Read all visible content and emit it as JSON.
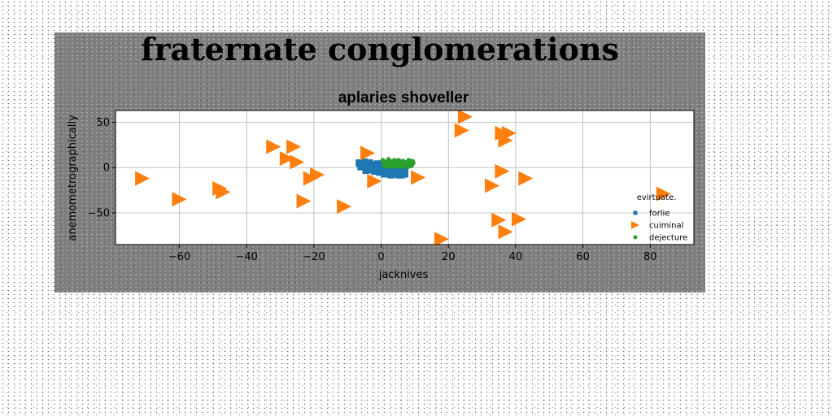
{
  "chart_data": {
    "type": "scatter",
    "title": "aplaries shoveller",
    "suptitle": "fraternate conglomerations",
    "xlabel": "jacknives",
    "ylabel": "anemometrographically",
    "xlim": [
      -79,
      93
    ],
    "ylim": [
      -85,
      63
    ],
    "xticks": [
      -60,
      -40,
      -20,
      0,
      20,
      40,
      60,
      80
    ],
    "yticks": [
      -50,
      0,
      50
    ],
    "grid": true,
    "legend": {
      "title": "evirtuate.",
      "placement": "lower-right",
      "entries": [
        "forlie",
        "cuiminal",
        "dejecture"
      ]
    },
    "series": [
      {
        "name": "forlie",
        "marker": "square",
        "color": "#1f77b4",
        "points": [
          [
            -6.5,
            5
          ],
          [
            -5.5,
            2
          ],
          [
            -4.5,
            -1
          ],
          [
            -4,
            4
          ],
          [
            -3,
            1
          ],
          [
            -2.5,
            -2
          ],
          [
            -2,
            3
          ],
          [
            -1,
            0
          ],
          [
            -1.5,
            -3
          ],
          [
            -0.5,
            -5
          ],
          [
            0,
            2
          ],
          [
            0.5,
            -2
          ],
          [
            1,
            -5
          ],
          [
            1.5,
            1
          ],
          [
            2,
            -3
          ],
          [
            2.5,
            -6
          ],
          [
            3,
            0
          ],
          [
            3.5,
            -4
          ],
          [
            4,
            -7
          ],
          [
            4.5,
            -2
          ],
          [
            5,
            -6
          ],
          [
            5.5,
            -3
          ],
          [
            6,
            -8
          ],
          [
            6.5,
            -5
          ],
          [
            7,
            -7
          ],
          [
            -6,
            1
          ],
          [
            -5,
            6
          ],
          [
            -3.5,
            5
          ],
          [
            -1,
            4
          ],
          [
            0.5,
            4
          ],
          [
            2,
            2
          ],
          [
            3.5,
            1
          ],
          [
            5,
            0
          ],
          [
            6.5,
            -1
          ],
          [
            7,
            -4
          ],
          [
            -4.5,
            -3
          ],
          [
            -2,
            -4
          ],
          [
            1,
            -7
          ],
          [
            3,
            -8
          ],
          [
            5.5,
            -8
          ]
        ]
      },
      {
        "name": "cuiminal",
        "marker": "triangle-right",
        "color": "#ff7f0e",
        "points": [
          [
            -71,
            -12
          ],
          [
            -60,
            -35
          ],
          [
            -48,
            -23
          ],
          [
            -47,
            -27
          ],
          [
            -32,
            23
          ],
          [
            -28,
            10
          ],
          [
            -26,
            23
          ],
          [
            -25,
            6
          ],
          [
            -23,
            -37
          ],
          [
            -21,
            -12
          ],
          [
            -19,
            -8
          ],
          [
            -11,
            -43
          ],
          [
            -4,
            16
          ],
          [
            -2,
            -15
          ],
          [
            11,
            -11
          ],
          [
            18,
            -79
          ],
          [
            25,
            56
          ],
          [
            24,
            41
          ],
          [
            33,
            -20
          ],
          [
            36,
            38
          ],
          [
            38,
            38
          ],
          [
            37,
            30
          ],
          [
            36,
            -4
          ],
          [
            35,
            -58
          ],
          [
            37,
            -71
          ],
          [
            41,
            -57
          ],
          [
            43,
            -12
          ],
          [
            84,
            -29
          ]
        ]
      },
      {
        "name": "dejecture",
        "marker": "circle",
        "color": "#2ca02c",
        "points": [
          [
            0.5,
            8
          ],
          [
            1,
            5
          ],
          [
            1.5,
            3
          ],
          [
            2,
            7
          ],
          [
            2.5,
            4
          ],
          [
            3,
            6
          ],
          [
            3.5,
            3
          ],
          [
            4,
            8
          ],
          [
            4.5,
            5
          ],
          [
            5,
            3
          ],
          [
            5.5,
            6
          ],
          [
            6,
            4
          ],
          [
            6.5,
            7
          ],
          [
            7,
            3
          ],
          [
            7.5,
            5
          ],
          [
            8,
            6
          ],
          [
            8.5,
            4
          ],
          [
            9,
            3
          ],
          [
            9.5,
            5
          ],
          [
            1,
            2
          ],
          [
            2,
            1
          ],
          [
            3,
            2
          ],
          [
            4,
            1
          ],
          [
            5,
            2
          ],
          [
            6,
            1
          ],
          [
            7,
            2
          ],
          [
            8,
            1
          ],
          [
            9,
            2
          ],
          [
            0.8,
            6
          ],
          [
            2.2,
            9
          ],
          [
            3.6,
            7
          ],
          [
            5.2,
            8
          ],
          [
            6.8,
            6
          ],
          [
            8.2,
            8
          ],
          [
            9.3,
            7
          ],
          [
            4.8,
            4
          ],
          [
            6.2,
            2
          ],
          [
            7.8,
            4
          ],
          [
            3.2,
            4
          ],
          [
            1.8,
            4
          ]
        ]
      }
    ]
  }
}
